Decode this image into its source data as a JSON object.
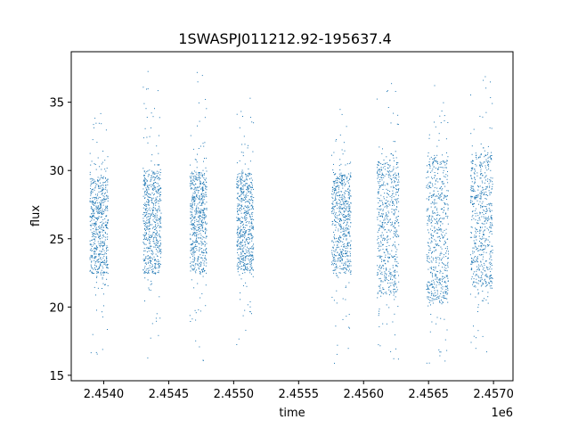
{
  "chart_data": {
    "type": "scatter",
    "title": "1SWASPJ011212.92-195637.4",
    "xlabel": "time",
    "ylabel": "flux",
    "x_offset_label": "1e6",
    "xlim": [
      2453750,
      2457150
    ],
    "ylim": [
      14.6,
      38.7
    ],
    "x_ticks": [
      2454000,
      2454500,
      2455000,
      2455500,
      2456000,
      2456500,
      2457000
    ],
    "x_tick_labels": [
      "2.4540",
      "2.4545",
      "2.4550",
      "2.4555",
      "2.4560",
      "2.4565",
      "2.4570"
    ],
    "y_ticks": [
      15,
      20,
      25,
      30,
      35
    ],
    "y_tick_labels": [
      "15",
      "20",
      "25",
      "30",
      "35"
    ],
    "grid": false,
    "legend": "none",
    "marker_color": "#1f77b4",
    "series": [
      {
        "seasons": [
          {
            "x_start": 2453890,
            "x_end": 2454030,
            "core_low": 22.5,
            "core_high": 29.5,
            "min": 16.5,
            "max": 34.5
          },
          {
            "x_start": 2454300,
            "x_end": 2454440,
            "core_low": 22.5,
            "core_high": 30.0,
            "min": 16.2,
            "max": 37.5
          },
          {
            "x_start": 2454660,
            "x_end": 2454790,
            "core_low": 22.6,
            "core_high": 29.9,
            "min": 16.1,
            "max": 37.5
          },
          {
            "x_start": 2455020,
            "x_end": 2455150,
            "core_low": 22.7,
            "core_high": 29.8,
            "min": 16.5,
            "max": 35.5
          },
          {
            "x_start": 2455750,
            "x_end": 2455900,
            "core_low": 22.5,
            "core_high": 29.7,
            "min": 15.8,
            "max": 34.7
          },
          {
            "x_start": 2456100,
            "x_end": 2456270,
            "core_low": 21.0,
            "core_high": 30.6,
            "min": 16.0,
            "max": 36.8
          },
          {
            "x_start": 2456480,
            "x_end": 2456650,
            "core_low": 20.5,
            "core_high": 30.8,
            "min": 15.5,
            "max": 36.3
          },
          {
            "x_start": 2456820,
            "x_end": 2456990,
            "core_low": 21.5,
            "core_high": 31.2,
            "min": 16.0,
            "max": 37.6
          }
        ]
      }
    ]
  }
}
